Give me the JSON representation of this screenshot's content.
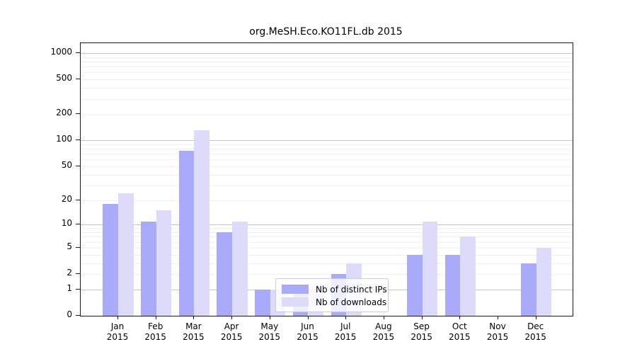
{
  "title": "org.MeSH.Eco.KO11FL.db 2015",
  "chart_data": {
    "type": "bar",
    "title": "org.MeSH.Eco.KO11FL.db 2015",
    "categories": [
      "Jan 2015",
      "Feb 2015",
      "Mar 2015",
      "Apr 2015",
      "May 2015",
      "Jun 2015",
      "Jul 2015",
      "Aug 2015",
      "Sep 2015",
      "Oct 2015",
      "Nov 2015",
      "Dec 2015"
    ],
    "series": [
      {
        "name": "Nb of distinct IPs",
        "color": "#aaaafa",
        "values": [
          18,
          11,
          75,
          8,
          1,
          1,
          2,
          0,
          4,
          4,
          0,
          3
        ]
      },
      {
        "name": "Nb of downloads",
        "color": "#dcdcfa",
        "values": [
          24,
          15,
          130,
          11,
          1,
          1,
          3,
          0,
          11,
          7,
          0,
          5
        ]
      }
    ],
    "yscale": "log1p",
    "ylim": [
      0,
      1300
    ],
    "yticks": [
      {
        "label": "0",
        "value": 0
      },
      {
        "label": "1",
        "value": 1
      },
      {
        "label": "2",
        "value": 2
      },
      {
        "label": "5",
        "value": 5
      },
      {
        "label": "10",
        "value": 10
      },
      {
        "label": "20",
        "value": 20
      },
      {
        "label": "50",
        "value": 50
      },
      {
        "label": "100",
        "value": 100
      },
      {
        "label": "200",
        "value": 200
      },
      {
        "label": "500",
        "value": 500
      },
      {
        "label": "1000",
        "value": 1000
      }
    ],
    "grid": true,
    "legend_position": "inside-lower-center"
  },
  "colors": {
    "grid_minor": "#efefef",
    "grid_major": "#c4c4c4",
    "axis": "#1a1a1a",
    "bar_ips": "#aaaafa",
    "bar_downloads": "#dcdcfa"
  }
}
